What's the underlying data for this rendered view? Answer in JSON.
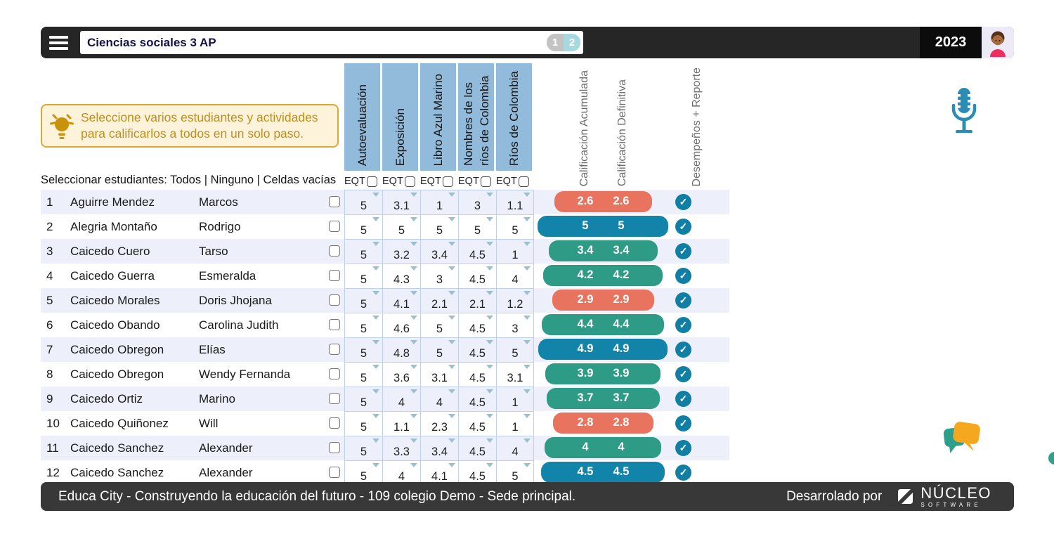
{
  "header": {
    "title": "Ciencias sociales 3 AP",
    "pages": [
      "1",
      "2"
    ],
    "year": "2023"
  },
  "hint": {
    "line1": "Seleccione varios estudiantes y actividades",
    "line2": "para calificarlos a todos en un solo paso."
  },
  "selection_bar": {
    "label": "Seleccionar estudiantes:",
    "options": [
      "Todos",
      "Ninguno",
      "Celdas vacías"
    ],
    "separator": "|"
  },
  "columns": {
    "activities": [
      "Autoevaluación",
      "Exposición",
      "Libro Azul Marino",
      "Nombres de los ríos de Colombia",
      "Ríos de Colombia"
    ],
    "eqt_label": "EQT",
    "summary": [
      "Calificación Acumulada",
      "Calificación Definitiva",
      "Desempeños + Reporte"
    ]
  },
  "students": [
    {
      "n": "1",
      "last": "Aguirre Mendez",
      "first": "Marcos",
      "grades": [
        "5",
        "3.1",
        "1",
        "3",
        "1.1"
      ],
      "acum": "2.6",
      "def": "2.6",
      "level": "low"
    },
    {
      "n": "2",
      "last": "Alegria Montaño",
      "first": "Rodrigo",
      "grades": [
        "5",
        "5",
        "5",
        "5",
        "5"
      ],
      "acum": "5",
      "def": "5",
      "level": "high"
    },
    {
      "n": "3",
      "last": "Caicedo Cuero",
      "first": "Tarso",
      "grades": [
        "5",
        "3.2",
        "3.4",
        "4.5",
        "1"
      ],
      "acum": "3.4",
      "def": "3.4",
      "level": "mid"
    },
    {
      "n": "4",
      "last": "Caicedo Guerra",
      "first": "Esmeralda",
      "grades": [
        "5",
        "4.3",
        "3",
        "4.5",
        "4"
      ],
      "acum": "4.2",
      "def": "4.2",
      "level": "mid"
    },
    {
      "n": "5",
      "last": "Caicedo Morales",
      "first": "Doris Jhojana",
      "grades": [
        "5",
        "4.1",
        "2.1",
        "2.1",
        "1.2"
      ],
      "acum": "2.9",
      "def": "2.9",
      "level": "low"
    },
    {
      "n": "6",
      "last": "Caicedo Obando",
      "first": "Carolina Judith",
      "grades": [
        "5",
        "4.6",
        "5",
        "4.5",
        "3"
      ],
      "acum": "4.4",
      "def": "4.4",
      "level": "mid"
    },
    {
      "n": "7",
      "last": "Caicedo Obregon",
      "first": "Elías",
      "grades": [
        "5",
        "4.8",
        "5",
        "4.5",
        "5"
      ],
      "acum": "4.9",
      "def": "4.9",
      "level": "high"
    },
    {
      "n": "8",
      "last": "Caicedo Obregon",
      "first": "Wendy Fernanda",
      "grades": [
        "5",
        "3.6",
        "3.1",
        "4.5",
        "3.1"
      ],
      "acum": "3.9",
      "def": "3.9",
      "level": "mid"
    },
    {
      "n": "9",
      "last": "Caicedo Ortiz",
      "first": "Marino",
      "grades": [
        "5",
        "4",
        "4",
        "4.5",
        "1"
      ],
      "acum": "3.7",
      "def": "3.7",
      "level": "mid"
    },
    {
      "n": "10",
      "last": "Caicedo Quiñonez",
      "first": "Will",
      "grades": [
        "5",
        "1.1",
        "2.3",
        "4.5",
        "1"
      ],
      "acum": "2.8",
      "def": "2.8",
      "level": "low"
    },
    {
      "n": "11",
      "last": "Caicedo Sanchez",
      "first": "Alexander",
      "grades": [
        "5",
        "3.3",
        "3.4",
        "4.5",
        "4"
      ],
      "acum": "4",
      "def": "4",
      "level": "mid"
    },
    {
      "n": "12",
      "last": "Caicedo Sanchez",
      "first": "Alexander",
      "grades": [
        "5",
        "4",
        "4.1",
        "4.5",
        "5"
      ],
      "acum": "4.5",
      "def": "4.5",
      "level": "high"
    }
  ],
  "footer": {
    "text": "Educa City - Construyendo la educación del futuro - 109 colegio Demo - Sede principal.",
    "developed_by": "Desarrolado por",
    "brand": "NÚCLEO",
    "brand_sub": "SOFTWARE"
  },
  "icons": {
    "menu": "hamburger-icon",
    "lightbulb": "lightbulb-icon",
    "microphone": "microphone-icon",
    "check_glyph": "✓",
    "chat": "chat-bubbles-icon"
  },
  "colors": {
    "header_blue": "#92bada",
    "topbar": "#262626",
    "footer": "#383838",
    "gold": "#c8920b",
    "accent_teal": "#117ea4",
    "levels": {
      "low": "#e8735e",
      "mid": "#2d9b86",
      "high": "#1283a9"
    }
  }
}
